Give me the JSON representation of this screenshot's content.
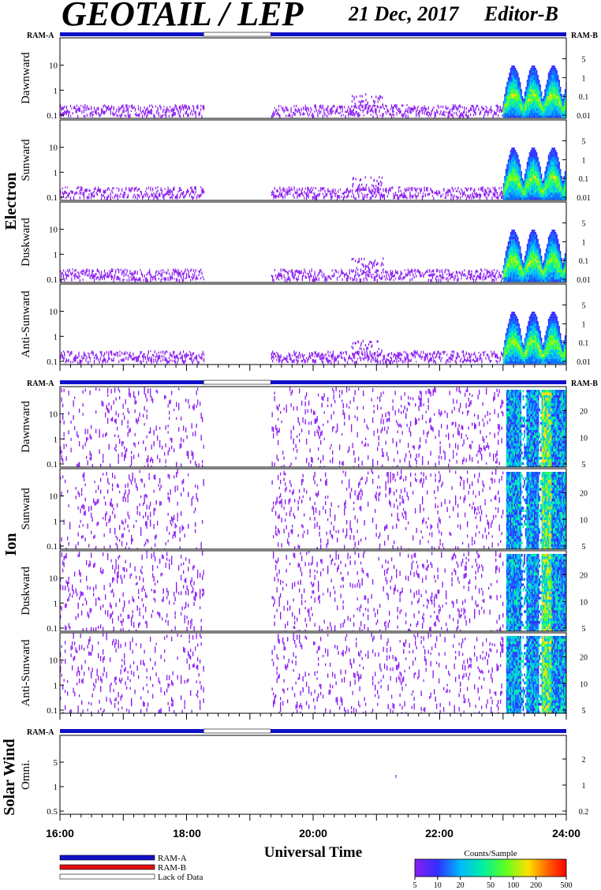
{
  "header": {
    "title": "GEOTAIL / LEP",
    "date": "21 Dec, 2017",
    "editor": "Editor-B"
  },
  "sections": {
    "electron": "Electron",
    "ion": "Ion",
    "solar_wind": "Solar Wind"
  },
  "ram_labels": {
    "ram_a": "RAM-A",
    "ram_b": "RAM-B"
  },
  "colors": {
    "ram_a": "#1010c8",
    "ram_b": "#e01010",
    "lack_of_data": "#ffffff",
    "sparse_counts": "#7a1cf0"
  },
  "x_axis": {
    "label": "Universal Time",
    "ticks": [
      "16:00",
      "18:00",
      "20:00",
      "22:00",
      "24:00"
    ]
  },
  "legend": {
    "ram_a": "RAM-A",
    "ram_b": "RAM-B",
    "lack": "Lack of Data"
  },
  "colorbar": {
    "title": "Counts/Sample",
    "ticks": [
      "5",
      "10",
      "20",
      "50",
      "100",
      "200",
      "500"
    ]
  },
  "chart_data": [
    {
      "type": "heatmap",
      "group": "electron",
      "ylabel": "Dawnward",
      "left_ticks": [
        "0.1",
        "1",
        "10"
      ],
      "right_ticks": [
        "0.01",
        "0.1",
        "1",
        "5"
      ],
      "x_range_hours": [
        16,
        24
      ],
      "data_gap_hours": [
        18.27,
        19.33
      ],
      "active_band_hours": [
        23.0,
        24.0
      ],
      "ram_mode": "RAM-A"
    },
    {
      "type": "heatmap",
      "group": "electron",
      "ylabel": "Sunward",
      "left_ticks": [
        "0.1",
        "1",
        "10"
      ],
      "right_ticks": [
        "0.01",
        "0.1",
        "1",
        "5"
      ],
      "x_range_hours": [
        16,
        24
      ],
      "data_gap_hours": [
        18.27,
        19.33
      ],
      "active_band_hours": [
        23.0,
        24.0
      ]
    },
    {
      "type": "heatmap",
      "group": "electron",
      "ylabel": "Duskward",
      "left_ticks": [
        "0.1",
        "1",
        "10"
      ],
      "right_ticks": [
        "0.01",
        "0.1",
        "1",
        "5"
      ],
      "x_range_hours": [
        16,
        24
      ],
      "data_gap_hours": [
        18.27,
        19.33
      ],
      "active_band_hours": [
        23.0,
        24.0
      ]
    },
    {
      "type": "heatmap",
      "group": "electron",
      "ylabel": "Anti-Sunward",
      "left_ticks": [
        "0.1",
        "1",
        "10"
      ],
      "right_ticks": [
        "0.01",
        "0.1",
        "1",
        "5"
      ],
      "x_range_hours": [
        16,
        24
      ],
      "data_gap_hours": [
        18.27,
        19.33
      ],
      "active_band_hours": [
        23.0,
        24.0
      ]
    },
    {
      "type": "heatmap",
      "group": "ion",
      "ylabel": "Dawnward",
      "left_ticks": [
        "0.1",
        "1",
        "10"
      ],
      "right_ticks": [
        "5",
        "10",
        "20"
      ],
      "x_range_hours": [
        16,
        24
      ],
      "data_gap_hours": [
        18.27,
        19.33
      ],
      "active_band_hours": [
        23.0,
        24.0
      ],
      "ram_mode": "RAM-A"
    },
    {
      "type": "heatmap",
      "group": "ion",
      "ylabel": "Sunward",
      "left_ticks": [
        "0.1",
        "1",
        "10"
      ],
      "right_ticks": [
        "5",
        "10",
        "20"
      ],
      "x_range_hours": [
        16,
        24
      ],
      "data_gap_hours": [
        18.27,
        19.33
      ],
      "active_band_hours": [
        23.0,
        24.0
      ]
    },
    {
      "type": "heatmap",
      "group": "ion",
      "ylabel": "Duskward",
      "left_ticks": [
        "0.1",
        "1",
        "10"
      ],
      "right_ticks": [
        "5",
        "10",
        "20"
      ],
      "x_range_hours": [
        16,
        24
      ],
      "data_gap_hours": [
        18.27,
        19.33
      ],
      "active_band_hours": [
        23.0,
        24.0
      ]
    },
    {
      "type": "heatmap",
      "group": "ion",
      "ylabel": "Anti-Sunward",
      "left_ticks": [
        "0.1",
        "1",
        "10"
      ],
      "right_ticks": [
        "5",
        "10",
        "20"
      ],
      "x_range_hours": [
        16,
        24
      ],
      "data_gap_hours": [
        18.27,
        19.33
      ],
      "active_band_hours": [
        23.0,
        24.0
      ]
    },
    {
      "type": "heatmap",
      "group": "solar_wind",
      "ylabel": "Omni.",
      "left_ticks": [
        "0.5",
        "1",
        "5"
      ],
      "right_ticks": [
        "0.2",
        "1",
        "2"
      ],
      "x_range_hours": [
        16,
        24
      ],
      "data_gap_hours": [
        18.27,
        19.33
      ],
      "ram_mode": "RAM-A"
    }
  ]
}
